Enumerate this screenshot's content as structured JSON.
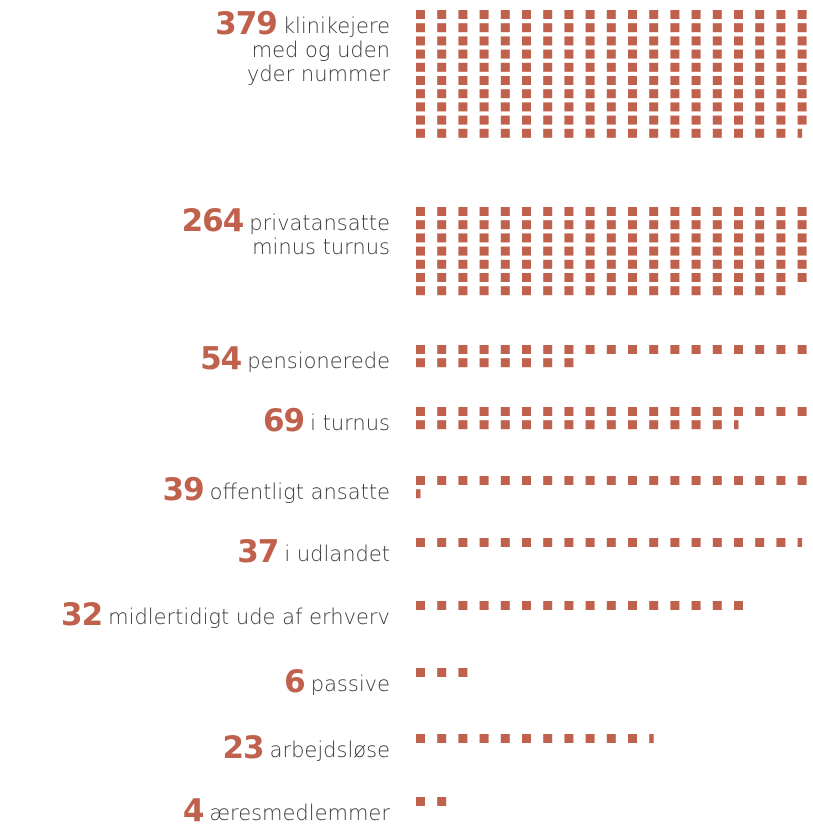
{
  "chart_data": {
    "type": "waffle",
    "color": "#c0614d",
    "unit_per_square": 2,
    "rows": [
      {
        "value": "379",
        "label": "klinikejere\nmed og uden\nyder nummer",
        "count": 379
      },
      {
        "value": "264",
        "label": "privatansatte\nminus turnus",
        "count": 264
      },
      {
        "value": "54",
        "label": "pensionerede",
        "count": 54
      },
      {
        "value": "69",
        "label": "i turnus",
        "count": 69
      },
      {
        "value": "39",
        "label": "offentligt ansatte",
        "count": 39
      },
      {
        "value": "37",
        "label": "i udlandet",
        "count": 37
      },
      {
        "value": "32",
        "label": "midlertidigt ude af erhverv",
        "count": 32
      },
      {
        "value": "6",
        "label": "passive",
        "count": 6
      },
      {
        "value": "23",
        "label": "arbejdsløse",
        "count": 23
      },
      {
        "value": "4",
        "label": "æresmedlemmer",
        "count": 4
      }
    ]
  }
}
